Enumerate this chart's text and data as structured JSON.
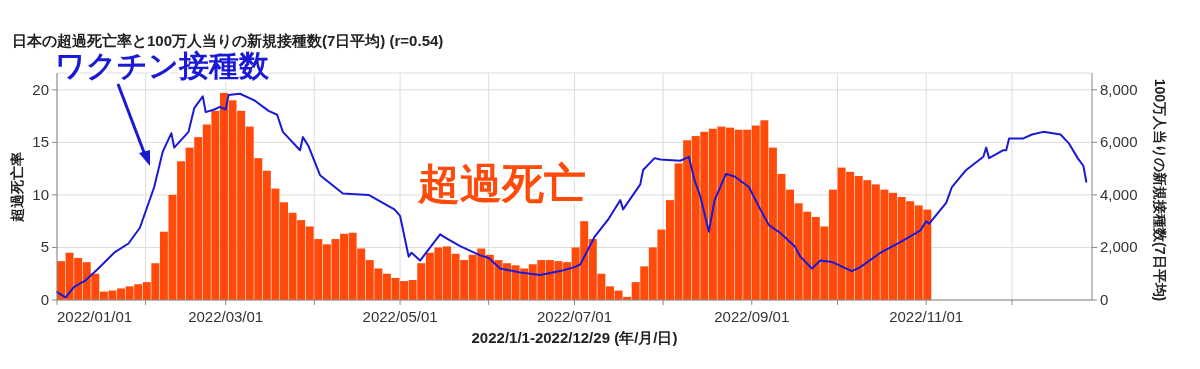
{
  "chart_data": {
    "type": "bar",
    "title": "日本の超過死亡率と100万人当りの新規接種数(7日平均) (r=0.54)",
    "xlabel": "2022/1/1-2022/12/29 (年/月/日)",
    "ylabel": "超過死亡率",
    "y2label": "100万人当りの新規接種数(7日平均)",
    "xlim": [
      "2022-01-01",
      "2022-12-29"
    ],
    "xticks": [
      {
        "value": "2022-01-01",
        "label": "2022/01/01"
      },
      {
        "value": "2022-02-01",
        "label": null
      },
      {
        "value": "2022-03-01",
        "label": "2022/03/01"
      },
      {
        "value": "2022-04-01",
        "label": null
      },
      {
        "value": "2022-05-01",
        "label": "2022/05/01"
      },
      {
        "value": "2022-06-01",
        "label": null
      },
      {
        "value": "2022-07-01",
        "label": "2022/07/01"
      },
      {
        "value": "2022-08-01",
        "label": null
      },
      {
        "value": "2022-09-01",
        "label": "2022/09/01"
      },
      {
        "value": "2022-10-01",
        "label": null
      },
      {
        "value": "2022-11-01",
        "label": "2022/11/01"
      },
      {
        "value": "2022-12-01",
        "label": null
      }
    ],
    "ylim": [
      0,
      21.6
    ],
    "yticks": [
      0,
      5,
      10,
      15,
      20
    ],
    "y2lim": [
      0,
      8640
    ],
    "y2ticks": [
      0,
      {
        "value": 2000,
        "label": "2,000"
      },
      {
        "value": 4000,
        "label": "4,000"
      },
      {
        "value": 6000,
        "label": "6,000"
      },
      {
        "value": 8000,
        "label": "8,000"
      }
    ],
    "grid": true,
    "series": [
      {
        "name": "超過死亡",
        "color": "#ff4a0a",
        "x": [
          "2022-01-01",
          "2022-01-04",
          "2022-01-07",
          "2022-01-10",
          "2022-01-13",
          "2022-01-16",
          "2022-01-19",
          "2022-01-22",
          "2022-01-25",
          "2022-01-28",
          "2022-01-31",
          "2022-02-03",
          "2022-02-06",
          "2022-02-09",
          "2022-02-12",
          "2022-02-15",
          "2022-02-18",
          "2022-02-21",
          "2022-02-24",
          "2022-02-27",
          "2022-03-02",
          "2022-03-05",
          "2022-03-08",
          "2022-03-11",
          "2022-03-14",
          "2022-03-17",
          "2022-03-20",
          "2022-03-23",
          "2022-03-26",
          "2022-03-29",
          "2022-04-01",
          "2022-04-04",
          "2022-04-07",
          "2022-04-10",
          "2022-04-13",
          "2022-04-16",
          "2022-04-19",
          "2022-04-22",
          "2022-04-25",
          "2022-04-28",
          "2022-05-01",
          "2022-05-04",
          "2022-05-07",
          "2022-05-10",
          "2022-05-13",
          "2022-05-16",
          "2022-05-19",
          "2022-05-22",
          "2022-05-25",
          "2022-05-28",
          "2022-05-31",
          "2022-06-03",
          "2022-06-06",
          "2022-06-09",
          "2022-06-12",
          "2022-06-15",
          "2022-06-18",
          "2022-06-21",
          "2022-06-24",
          "2022-06-27",
          "2022-06-30",
          "2022-07-03",
          "2022-07-06",
          "2022-07-09",
          "2022-07-12",
          "2022-07-15",
          "2022-07-18",
          "2022-07-21",
          "2022-07-24",
          "2022-07-27",
          "2022-07-30",
          "2022-08-02",
          "2022-08-05",
          "2022-08-08",
          "2022-08-11",
          "2022-08-14",
          "2022-08-17",
          "2022-08-20",
          "2022-08-23",
          "2022-08-26",
          "2022-08-29",
          "2022-09-01",
          "2022-09-04",
          "2022-09-07",
          "2022-09-10",
          "2022-09-13",
          "2022-09-16",
          "2022-09-19",
          "2022-09-22",
          "2022-09-25",
          "2022-09-28",
          "2022-10-01",
          "2022-10-04",
          "2022-10-07",
          "2022-10-10",
          "2022-10-13",
          "2022-10-16",
          "2022-10-19",
          "2022-10-22",
          "2022-10-25",
          "2022-10-28",
          "2022-10-31"
        ],
        "values": [
          3.7,
          4.5,
          4.0,
          3.6,
          2.5,
          0.8,
          0.9,
          1.1,
          1.3,
          1.5,
          1.7,
          3.5,
          6.5,
          10.0,
          13.2,
          14.5,
          15.5,
          16.7,
          18.0,
          19.7,
          19.0,
          18.0,
          16.5,
          13.5,
          12.3,
          10.6,
          9.3,
          8.3,
          7.6,
          7.0,
          5.8,
          5.3,
          5.8,
          6.3,
          6.4,
          4.9,
          3.8,
          3.0,
          2.5,
          2.1,
          1.8,
          1.9,
          3.5,
          4.5,
          5.0,
          5.1,
          4.4,
          3.8,
          4.3,
          4.9,
          4.3,
          3.8,
          3.5,
          3.3,
          3.0,
          3.4,
          3.8,
          3.8,
          3.7,
          3.6,
          5.0,
          7.5,
          5.8,
          2.5,
          1.3,
          0.9,
          0.3,
          1.7,
          3.2,
          5.0,
          6.7,
          9.5,
          13.0,
          15.2,
          15.6,
          16.0,
          16.3,
          16.5,
          16.4,
          16.2,
          16.2,
          16.6,
          17.1,
          14.5,
          12.0,
          10.5,
          9.2,
          8.4,
          7.9,
          7.0,
          10.5,
          12.6,
          12.2,
          11.8,
          11.4,
          11.0,
          10.5,
          10.2,
          9.8,
          9.4,
          9.0,
          8.6
        ]
      },
      {
        "name": "ワクチン接種数",
        "type": "line",
        "axis": "y2",
        "color": "#1a1ad6",
        "x": [
          "2022-01-01",
          "2022-01-04",
          "2022-01-07",
          "2022-01-11",
          "2022-01-15",
          "2022-01-21",
          "2022-01-26",
          "2022-01-30",
          "2022-02-04",
          "2022-02-07",
          "2022-02-10",
          "2022-02-11",
          "2022-02-16",
          "2022-02-18",
          "2022-02-21",
          "2022-02-22",
          "2022-02-25",
          "2022-02-27",
          "2022-03-01",
          "2022-03-02",
          "2022-03-06",
          "2022-03-11",
          "2022-03-16",
          "2022-03-19",
          "2022-03-21",
          "2022-03-27",
          "2022-03-28",
          "2022-03-30",
          "2022-04-03",
          "2022-04-11",
          "2022-04-20",
          "2022-04-29",
          "2022-05-01",
          "2022-05-04",
          "2022-05-05",
          "2022-05-08",
          "2022-05-15",
          "2022-05-18",
          "2022-05-22",
          "2022-05-29",
          "2022-06-01",
          "2022-06-05",
          "2022-06-12",
          "2022-06-19",
          "2022-06-26",
          "2022-07-01",
          "2022-07-03",
          "2022-07-08",
          "2022-07-13",
          "2022-07-17",
          "2022-07-18",
          "2022-07-24",
          "2022-07-25",
          "2022-07-29",
          "2022-07-31",
          "2022-08-07",
          "2022-08-10",
          "2022-08-12",
          "2022-08-14",
          "2022-08-17",
          "2022-08-19",
          "2022-08-23",
          "2022-08-26",
          "2022-08-31",
          "2022-09-04",
          "2022-09-07",
          "2022-09-11",
          "2022-09-16",
          "2022-09-18",
          "2022-09-22",
          "2022-09-25",
          "2022-09-29",
          "2022-10-06",
          "2022-10-09",
          "2022-10-16",
          "2022-10-23",
          "2022-10-30",
          "2022-11-01",
          "2022-11-02",
          "2022-11-08",
          "2022-11-10",
          "2022-11-15",
          "2022-11-21",
          "2022-11-22",
          "2022-11-23",
          "2022-11-28",
          "2022-11-29",
          "2022-11-30",
          "2022-12-05",
          "2022-12-08",
          "2022-12-12",
          "2022-12-18",
          "2022-12-21",
          "2022-12-24",
          "2022-12-26",
          "2022-12-27"
        ],
        "values": [
          300,
          100,
          500,
          750,
          1150,
          1800,
          2150,
          2750,
          4300,
          5650,
          6350,
          5800,
          6400,
          7300,
          7750,
          7150,
          7250,
          7350,
          7250,
          7800,
          7850,
          7600,
          7200,
          7050,
          6400,
          5700,
          6200,
          5850,
          4750,
          4050,
          4000,
          3450,
          3200,
          1650,
          1800,
          1500,
          2500,
          2300,
          2050,
          1700,
          1600,
          1200,
          1050,
          950,
          1100,
          1250,
          1350,
          2400,
          3100,
          3800,
          3450,
          4400,
          4950,
          5400,
          5350,
          5300,
          5450,
          4550,
          3950,
          2600,
          3800,
          4800,
          4700,
          4300,
          3450,
          2850,
          2550,
          2050,
          1650,
          1200,
          1500,
          1450,
          1100,
          1250,
          1800,
          2200,
          2650,
          3000,
          2900,
          3700,
          4300,
          4950,
          5450,
          5800,
          5400,
          5700,
          5700,
          6150,
          6150,
          6300,
          6400,
          6300,
          5950,
          5400,
          5100,
          4500
        ]
      }
    ]
  }
}
